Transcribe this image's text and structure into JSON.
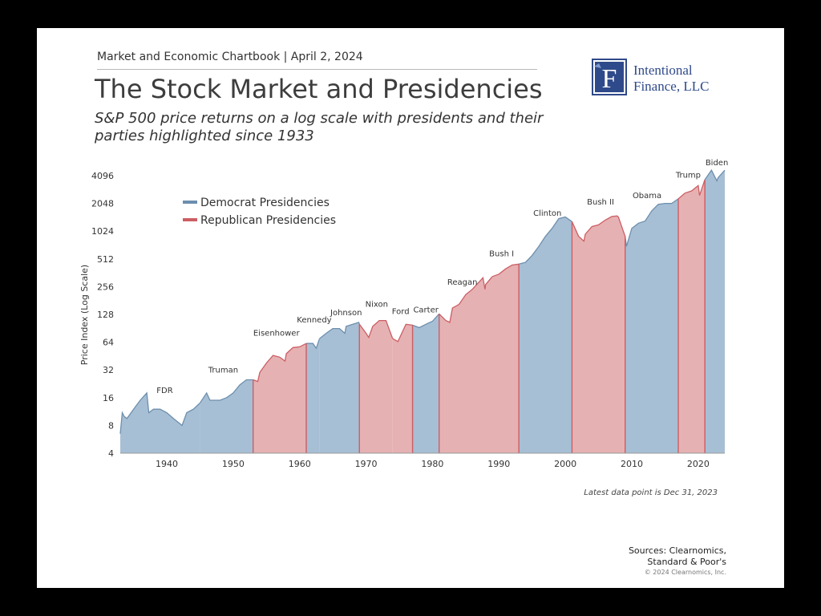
{
  "header": {
    "kicker": "Market and Economic Chartbook | April 2, 2024",
    "title": "The Stock Market and Presidencies",
    "subtitle": "S&P 500 price returns on a log scale with presidents and their parties highlighted since 1933"
  },
  "logo": {
    "line1": "Intentional",
    "line2": "Finance, LLC",
    "icon": "letter-f-monogram-icon",
    "color": "#2f4a8a"
  },
  "colors": {
    "democrat_fill": "#a7bfd4",
    "democrat_line": "#6d8fae",
    "republican_fill": "#e6b1b3",
    "republican_line": "#cc5e64"
  },
  "chart_data": {
    "type": "area",
    "ylabel": "Price Index (Log Scale)",
    "y_scale": "log2",
    "y_ticks": [
      4,
      8,
      16,
      32,
      64,
      128,
      256,
      512,
      1024,
      2048,
      4096
    ],
    "ylim": [
      4,
      6000
    ],
    "x_ticks": [
      1940,
      1950,
      1960,
      1970,
      1980,
      1990,
      2000,
      2010,
      2020
    ],
    "xlim": [
      1933,
      2024
    ],
    "legend": [
      {
        "name": "Democrat Presidencies",
        "party": "D"
      },
      {
        "name": "Republican Presidencies",
        "party": "R"
      }
    ],
    "legend_position": "top-left",
    "presidencies": [
      {
        "name": "FDR",
        "party": "D",
        "start": 1933,
        "end": 1945
      },
      {
        "name": "Truman",
        "party": "D",
        "start": 1945,
        "end": 1953
      },
      {
        "name": "Eisenhower",
        "party": "R",
        "start": 1953,
        "end": 1961
      },
      {
        "name": "Kennedy",
        "party": "D",
        "start": 1961,
        "end": 1963
      },
      {
        "name": "Johnson",
        "party": "D",
        "start": 1963,
        "end": 1969
      },
      {
        "name": "Nixon",
        "party": "R",
        "start": 1969,
        "end": 1974
      },
      {
        "name": "Ford",
        "party": "R",
        "start": 1974,
        "end": 1977
      },
      {
        "name": "Carter",
        "party": "D",
        "start": 1977,
        "end": 1981
      },
      {
        "name": "Reagan",
        "party": "R",
        "start": 1981,
        "end": 1989
      },
      {
        "name": "Bush I",
        "party": "R",
        "start": 1989,
        "end": 1993
      },
      {
        "name": "Clinton",
        "party": "D",
        "start": 1993,
        "end": 2001
      },
      {
        "name": "Bush II",
        "party": "R",
        "start": 2001,
        "end": 2009
      },
      {
        "name": "Obama",
        "party": "D",
        "start": 2009,
        "end": 2017
      },
      {
        "name": "Trump",
        "party": "R",
        "start": 2017,
        "end": 2021
      },
      {
        "name": "Biden",
        "party": "D",
        "start": 2021,
        "end": 2024
      }
    ],
    "series": [
      {
        "name": "S&P 500",
        "x": [
          1933.0,
          1933.3,
          1933.6,
          1934.0,
          1935.0,
          1936.0,
          1937.0,
          1937.3,
          1938.0,
          1939.0,
          1940.0,
          1941.0,
          1942.3,
          1943.0,
          1944.0,
          1945.0,
          1946.0,
          1946.5,
          1947.0,
          1948.0,
          1949.0,
          1950.0,
          1951.0,
          1952.0,
          1953.0,
          1953.7,
          1954.0,
          1955.0,
          1956.0,
          1957.0,
          1957.8,
          1958.0,
          1959.0,
          1960.0,
          1961.0,
          1962.0,
          1962.5,
          1963.0,
          1964.0,
          1965.0,
          1966.0,
          1966.8,
          1967.0,
          1968.0,
          1968.9,
          1969.0,
          1970.0,
          1970.4,
          1971.0,
          1972.0,
          1973.0,
          1974.0,
          1974.8,
          1975.0,
          1976.0,
          1977.0,
          1978.0,
          1979.0,
          1980.0,
          1981.0,
          1982.0,
          1982.6,
          1983.0,
          1984.0,
          1985.0,
          1986.0,
          1987.6,
          1987.9,
          1988.0,
          1989.0,
          1990.0,
          1991.0,
          1992.0,
          1993.0,
          1994.0,
          1995.0,
          1996.0,
          1997.0,
          1998.0,
          1999.0,
          2000.0,
          2001.0,
          2002.0,
          2002.8,
          2003.0,
          2004.0,
          2005.0,
          2006.0,
          2007.0,
          2007.8,
          2008.0,
          2009.0,
          2009.2,
          2010.0,
          2011.0,
          2012.0,
          2013.0,
          2014.0,
          2015.0,
          2016.0,
          2017.0,
          2018.0,
          2019.0,
          2020.0,
          2020.2,
          2021.0,
          2022.0,
          2022.8,
          2023.0,
          2024.0
        ],
        "values": [
          6.5,
          11,
          10,
          9.5,
          12,
          15,
          18,
          11,
          12,
          12,
          11,
          9.5,
          8,
          11,
          12,
          14,
          18,
          15,
          15,
          15,
          16,
          18,
          22,
          25,
          25,
          24,
          30,
          38,
          46,
          44,
          40,
          48,
          56,
          57,
          62,
          62,
          55,
          70,
          80,
          90,
          90,
          80,
          95,
          100,
          105,
          100,
          80,
          72,
          95,
          110,
          110,
          70,
          65,
          70,
          100,
          98,
          92,
          100,
          108,
          130,
          110,
          105,
          150,
          165,
          210,
          240,
          320,
          240,
          270,
          330,
          350,
          400,
          440,
          450,
          470,
          560,
          700,
          900,
          1100,
          1400,
          1460,
          1300,
          900,
          800,
          950,
          1150,
          1200,
          1350,
          1480,
          1500,
          1450,
          900,
          700,
          1100,
          1250,
          1320,
          1700,
          2000,
          2050,
          2050,
          2300,
          2650,
          2800,
          3200,
          2500,
          3700,
          4700,
          3600,
          3900,
          4700
        ]
      }
    ]
  },
  "footer": {
    "note": "Latest data point is Dec 31, 2023",
    "sources_line1": "Sources: Clearnomics,",
    "sources_line2": "Standard & Poor's",
    "copyright": "© 2024 Clearnomics, Inc."
  }
}
